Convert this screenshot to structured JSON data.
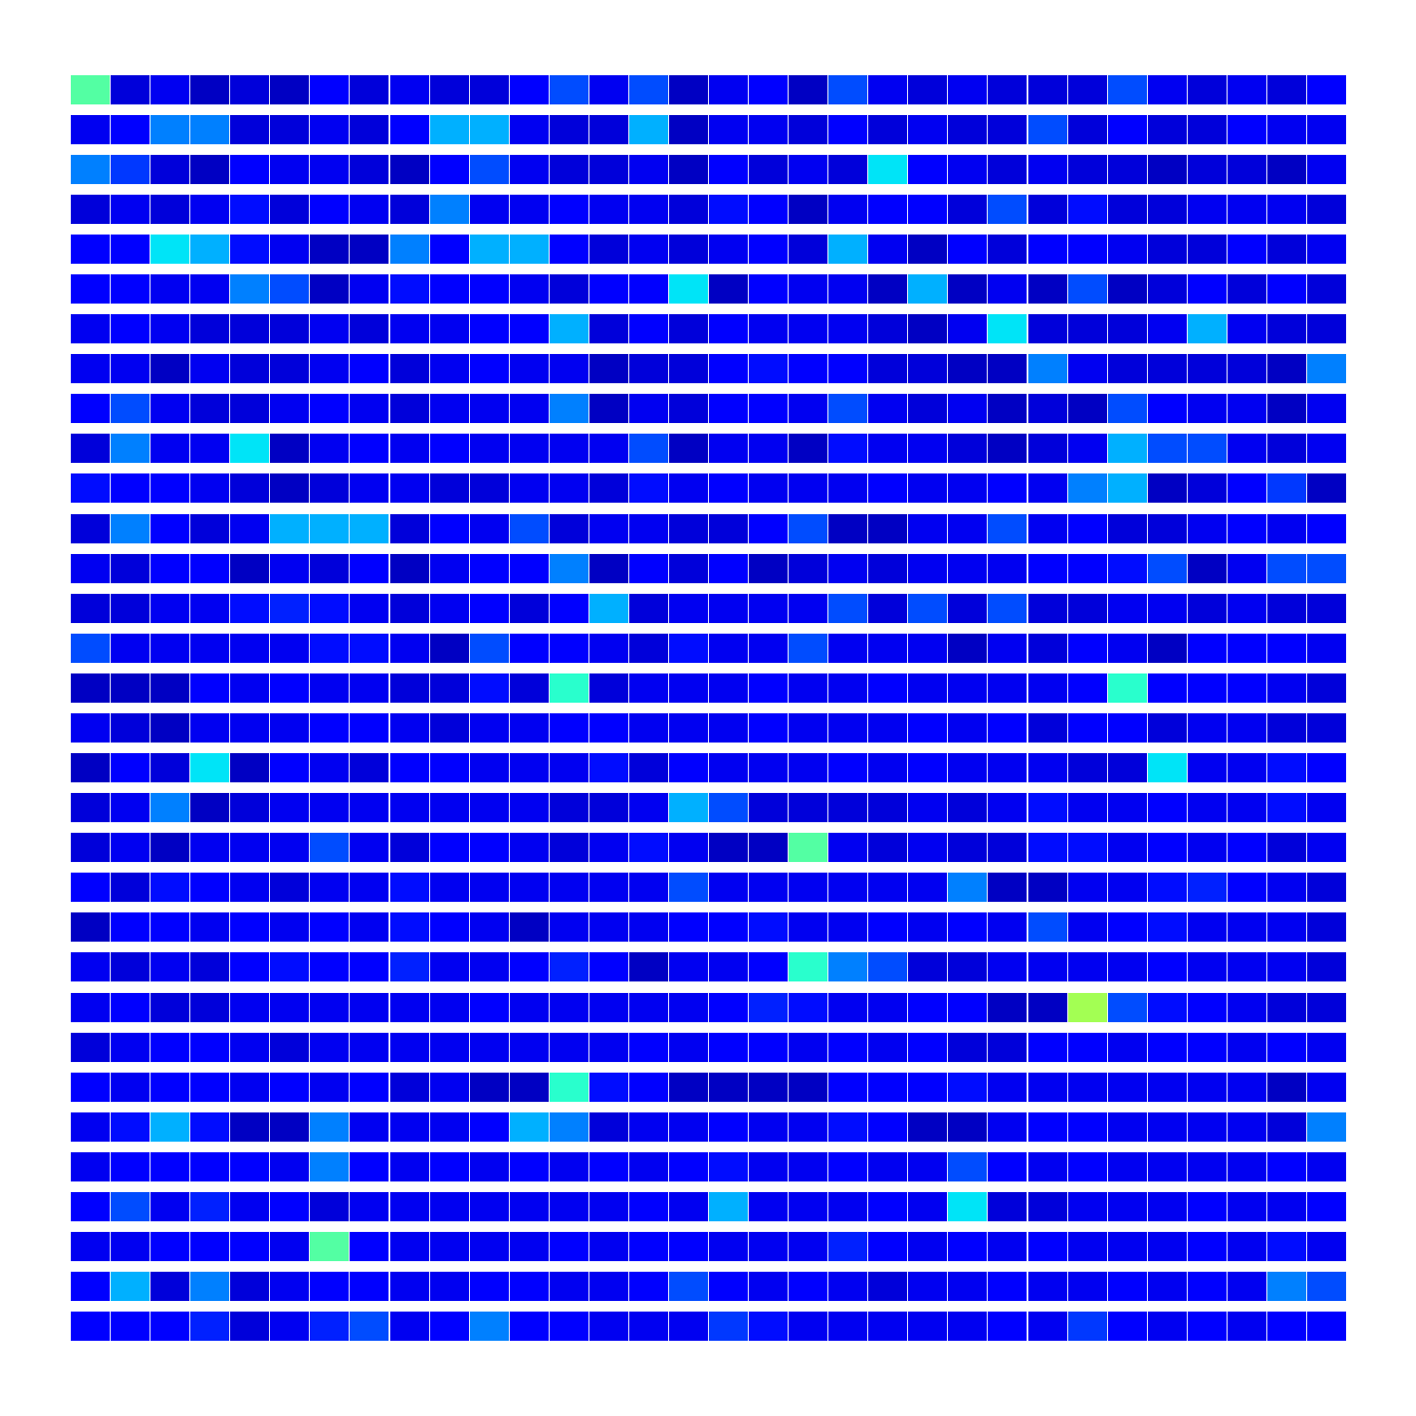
{
  "chart_data": {
    "type": "heatmap_grid",
    "color": "jet",
    "color_range": [
      0,
      1
    ],
    "tick_labels": false,
    "cells": [
      [
        0.45,
        0.08,
        0.1,
        0.06,
        0.08,
        0.06,
        0.12,
        0.08,
        0.1,
        0.08,
        0.08,
        0.12,
        0.2,
        0.1,
        0.2,
        0.06,
        0.1,
        0.12,
        0.06,
        0.2,
        0.1,
        0.08,
        0.1,
        0.08,
        0.08,
        0.08,
        0.2,
        0.1,
        0.08,
        0.1,
        0.08,
        0.12
      ],
      [
        0.1,
        0.12,
        0.25,
        0.25,
        0.08,
        0.08,
        0.1,
        0.08,
        0.12,
        0.3,
        0.3,
        0.1,
        0.08,
        0.08,
        0.3,
        0.06,
        0.1,
        0.1,
        0.08,
        0.12,
        0.08,
        0.1,
        0.08,
        0.08,
        0.2,
        0.08,
        0.12,
        0.08,
        0.08,
        0.12,
        0.1,
        0.1
      ],
      [
        0.25,
        0.18,
        0.08,
        0.06,
        0.12,
        0.1,
        0.1,
        0.08,
        0.06,
        0.12,
        0.2,
        0.1,
        0.08,
        0.08,
        0.1,
        0.06,
        0.12,
        0.08,
        0.1,
        0.08,
        0.35,
        0.12,
        0.1,
        0.08,
        0.1,
        0.08,
        0.08,
        0.06,
        0.08,
        0.08,
        0.06,
        0.1
      ],
      [
        0.08,
        0.1,
        0.08,
        0.1,
        0.14,
        0.08,
        0.12,
        0.1,
        0.08,
        0.25,
        0.1,
        0.1,
        0.12,
        0.1,
        0.1,
        0.08,
        0.14,
        0.12,
        0.06,
        0.1,
        0.12,
        0.12,
        0.08,
        0.2,
        0.08,
        0.14,
        0.08,
        0.08,
        0.1,
        0.1,
        0.1,
        0.08
      ],
      [
        0.12,
        0.12,
        0.35,
        0.3,
        0.14,
        0.1,
        0.06,
        0.06,
        0.25,
        0.12,
        0.3,
        0.3,
        0.12,
        0.08,
        0.1,
        0.08,
        0.1,
        0.12,
        0.08,
        0.3,
        0.1,
        0.06,
        0.12,
        0.08,
        0.12,
        0.12,
        0.1,
        0.08,
        0.08,
        0.12,
        0.08,
        0.1
      ],
      [
        0.12,
        0.12,
        0.1,
        0.1,
        0.25,
        0.2,
        0.06,
        0.1,
        0.14,
        0.12,
        0.12,
        0.1,
        0.08,
        0.12,
        0.12,
        0.35,
        0.06,
        0.12,
        0.1,
        0.1,
        0.06,
        0.3,
        0.06,
        0.1,
        0.06,
        0.2,
        0.06,
        0.08,
        0.12,
        0.08,
        0.12,
        0.08
      ],
      [
        0.1,
        0.12,
        0.1,
        0.08,
        0.08,
        0.08,
        0.1,
        0.08,
        0.1,
        0.1,
        0.12,
        0.12,
        0.3,
        0.08,
        0.12,
        0.08,
        0.12,
        0.1,
        0.1,
        0.1,
        0.08,
        0.06,
        0.1,
        0.35,
        0.08,
        0.08,
        0.08,
        0.1,
        0.3,
        0.1,
        0.08,
        0.08
      ],
      [
        0.1,
        0.1,
        0.06,
        0.1,
        0.08,
        0.08,
        0.1,
        0.12,
        0.08,
        0.1,
        0.12,
        0.1,
        0.1,
        0.06,
        0.08,
        0.08,
        0.12,
        0.14,
        0.12,
        0.12,
        0.08,
        0.08,
        0.06,
        0.06,
        0.25,
        0.1,
        0.08,
        0.08,
        0.08,
        0.08,
        0.06,
        0.25
      ],
      [
        0.12,
        0.2,
        0.1,
        0.08,
        0.08,
        0.1,
        0.12,
        0.1,
        0.08,
        0.1,
        0.1,
        0.1,
        0.25,
        0.06,
        0.1,
        0.08,
        0.12,
        0.12,
        0.1,
        0.2,
        0.1,
        0.08,
        0.1,
        0.06,
        0.08,
        0.06,
        0.2,
        0.12,
        0.1,
        0.1,
        0.06,
        0.1
      ],
      [
        0.08,
        0.25,
        0.1,
        0.1,
        0.35,
        0.06,
        0.1,
        0.12,
        0.1,
        0.12,
        0.1,
        0.1,
        0.1,
        0.1,
        0.2,
        0.06,
        0.1,
        0.1,
        0.06,
        0.14,
        0.1,
        0.1,
        0.08,
        0.06,
        0.08,
        0.1,
        0.3,
        0.2,
        0.2,
        0.1,
        0.08,
        0.1
      ],
      [
        0.14,
        0.12,
        0.12,
        0.1,
        0.08,
        0.06,
        0.08,
        0.1,
        0.1,
        0.08,
        0.08,
        0.1,
        0.1,
        0.08,
        0.14,
        0.1,
        0.12,
        0.1,
        0.1,
        0.1,
        0.12,
        0.1,
        0.1,
        0.12,
        0.1,
        0.25,
        0.3,
        0.06,
        0.08,
        0.12,
        0.18,
        0.06
      ],
      [
        0.08,
        0.25,
        0.12,
        0.08,
        0.1,
        0.3,
        0.3,
        0.3,
        0.08,
        0.12,
        0.1,
        0.2,
        0.08,
        0.1,
        0.1,
        0.08,
        0.08,
        0.12,
        0.2,
        0.06,
        0.06,
        0.1,
        0.1,
        0.2,
        0.1,
        0.12,
        0.08,
        0.08,
        0.1,
        0.12,
        0.1,
        0.12
      ],
      [
        0.1,
        0.08,
        0.12,
        0.12,
        0.06,
        0.1,
        0.08,
        0.12,
        0.06,
        0.1,
        0.12,
        0.12,
        0.25,
        0.06,
        0.12,
        0.08,
        0.12,
        0.06,
        0.08,
        0.1,
        0.08,
        0.1,
        0.1,
        0.1,
        0.12,
        0.12,
        0.14,
        0.2,
        0.06,
        0.1,
        0.2,
        0.2
      ],
      [
        0.08,
        0.08,
        0.1,
        0.1,
        0.14,
        0.16,
        0.14,
        0.1,
        0.08,
        0.1,
        0.12,
        0.08,
        0.12,
        0.3,
        0.08,
        0.1,
        0.1,
        0.1,
        0.1,
        0.2,
        0.08,
        0.2,
        0.08,
        0.2,
        0.08,
        0.08,
        0.1,
        0.1,
        0.08,
        0.1,
        0.08,
        0.08
      ],
      [
        0.2,
        0.1,
        0.1,
        0.1,
        0.1,
        0.1,
        0.14,
        0.14,
        0.1,
        0.06,
        0.2,
        0.12,
        0.12,
        0.1,
        0.08,
        0.14,
        0.1,
        0.1,
        0.2,
        0.1,
        0.1,
        0.1,
        0.06,
        0.1,
        0.08,
        0.12,
        0.1,
        0.06,
        0.12,
        0.12,
        0.12,
        0.1
      ],
      [
        0.06,
        0.06,
        0.06,
        0.12,
        0.1,
        0.12,
        0.1,
        0.1,
        0.08,
        0.08,
        0.14,
        0.08,
        0.4,
        0.08,
        0.1,
        0.1,
        0.1,
        0.12,
        0.1,
        0.1,
        0.12,
        0.1,
        0.1,
        0.1,
        0.1,
        0.12,
        0.4,
        0.12,
        0.12,
        0.12,
        0.1,
        0.08
      ],
      [
        0.1,
        0.08,
        0.06,
        0.1,
        0.1,
        0.1,
        0.12,
        0.12,
        0.1,
        0.08,
        0.1,
        0.1,
        0.12,
        0.12,
        0.1,
        0.1,
        0.1,
        0.12,
        0.1,
        0.1,
        0.1,
        0.12,
        0.1,
        0.12,
        0.08,
        0.12,
        0.12,
        0.08,
        0.1,
        0.1,
        0.08,
        0.08
      ],
      [
        0.06,
        0.12,
        0.08,
        0.35,
        0.06,
        0.12,
        0.1,
        0.08,
        0.12,
        0.12,
        0.1,
        0.1,
        0.1,
        0.14,
        0.08,
        0.12,
        0.1,
        0.1,
        0.1,
        0.12,
        0.1,
        0.12,
        0.1,
        0.1,
        0.1,
        0.08,
        0.08,
        0.35,
        0.1,
        0.1,
        0.14,
        0.12
      ],
      [
        0.08,
        0.1,
        0.25,
        0.06,
        0.08,
        0.1,
        0.1,
        0.1,
        0.1,
        0.1,
        0.1,
        0.1,
        0.08,
        0.08,
        0.1,
        0.3,
        0.2,
        0.08,
        0.08,
        0.08,
        0.08,
        0.1,
        0.08,
        0.1,
        0.14,
        0.1,
        0.1,
        0.12,
        0.1,
        0.1,
        0.14,
        0.1
      ],
      [
        0.08,
        0.1,
        0.06,
        0.1,
        0.1,
        0.1,
        0.2,
        0.1,
        0.08,
        0.12,
        0.12,
        0.1,
        0.08,
        0.1,
        0.14,
        0.1,
        0.06,
        0.06,
        0.45,
        0.1,
        0.08,
        0.1,
        0.08,
        0.08,
        0.14,
        0.14,
        0.1,
        0.12,
        0.1,
        0.12,
        0.08,
        0.1
      ],
      [
        0.12,
        0.08,
        0.14,
        0.12,
        0.1,
        0.08,
        0.1,
        0.1,
        0.14,
        0.1,
        0.1,
        0.1,
        0.1,
        0.1,
        0.1,
        0.2,
        0.1,
        0.1,
        0.1,
        0.1,
        0.1,
        0.1,
        0.25,
        0.06,
        0.06,
        0.1,
        0.1,
        0.14,
        0.16,
        0.12,
        0.1,
        0.08
      ],
      [
        0.06,
        0.12,
        0.12,
        0.1,
        0.12,
        0.1,
        0.12,
        0.1,
        0.14,
        0.12,
        0.1,
        0.06,
        0.1,
        0.1,
        0.1,
        0.12,
        0.12,
        0.14,
        0.1,
        0.1,
        0.12,
        0.1,
        0.12,
        0.1,
        0.2,
        0.1,
        0.12,
        0.14,
        0.1,
        0.1,
        0.1,
        0.08
      ],
      [
        0.1,
        0.08,
        0.1,
        0.08,
        0.12,
        0.14,
        0.12,
        0.12,
        0.16,
        0.1,
        0.1,
        0.12,
        0.16,
        0.12,
        0.06,
        0.1,
        0.1,
        0.12,
        0.4,
        0.25,
        0.2,
        0.08,
        0.08,
        0.1,
        0.1,
        0.1,
        0.1,
        0.12,
        0.1,
        0.1,
        0.1,
        0.08
      ],
      [
        0.1,
        0.12,
        0.08,
        0.08,
        0.1,
        0.1,
        0.1,
        0.1,
        0.1,
        0.1,
        0.12,
        0.1,
        0.1,
        0.1,
        0.1,
        0.1,
        0.12,
        0.16,
        0.14,
        0.1,
        0.1,
        0.12,
        0.12,
        0.06,
        0.06,
        0.55,
        0.2,
        0.14,
        0.12,
        0.1,
        0.08,
        0.08
      ],
      [
        0.08,
        0.1,
        0.12,
        0.12,
        0.1,
        0.08,
        0.1,
        0.1,
        0.1,
        0.1,
        0.1,
        0.1,
        0.1,
        0.1,
        0.12,
        0.1,
        0.12,
        0.12,
        0.1,
        0.12,
        0.1,
        0.12,
        0.08,
        0.08,
        0.12,
        0.12,
        0.1,
        0.12,
        0.12,
        0.1,
        0.12,
        0.1
      ],
      [
        0.12,
        0.1,
        0.12,
        0.12,
        0.1,
        0.12,
        0.1,
        0.12,
        0.08,
        0.1,
        0.06,
        0.06,
        0.4,
        0.14,
        0.12,
        0.06,
        0.06,
        0.06,
        0.06,
        0.12,
        0.12,
        0.12,
        0.14,
        0.1,
        0.1,
        0.1,
        0.1,
        0.1,
        0.1,
        0.1,
        0.06,
        0.1
      ],
      [
        0.1,
        0.14,
        0.3,
        0.14,
        0.06,
        0.06,
        0.25,
        0.1,
        0.1,
        0.1,
        0.12,
        0.3,
        0.25,
        0.08,
        0.1,
        0.1,
        0.12,
        0.1,
        0.1,
        0.14,
        0.12,
        0.06,
        0.06,
        0.1,
        0.12,
        0.12,
        0.1,
        0.1,
        0.1,
        0.1,
        0.08,
        0.25
      ],
      [
        0.1,
        0.12,
        0.12,
        0.12,
        0.12,
        0.1,
        0.25,
        0.12,
        0.1,
        0.12,
        0.1,
        0.12,
        0.1,
        0.12,
        0.1,
        0.12,
        0.14,
        0.1,
        0.1,
        0.12,
        0.1,
        0.1,
        0.2,
        0.12,
        0.1,
        0.12,
        0.1,
        0.1,
        0.1,
        0.1,
        0.12,
        0.1
      ],
      [
        0.12,
        0.2,
        0.1,
        0.16,
        0.1,
        0.12,
        0.08,
        0.1,
        0.1,
        0.1,
        0.1,
        0.1,
        0.1,
        0.1,
        0.12,
        0.1,
        0.3,
        0.1,
        0.1,
        0.1,
        0.12,
        0.1,
        0.35,
        0.08,
        0.08,
        0.1,
        0.1,
        0.1,
        0.12,
        0.1,
        0.1,
        0.12
      ],
      [
        0.1,
        0.1,
        0.12,
        0.12,
        0.12,
        0.1,
        0.45,
        0.12,
        0.1,
        0.1,
        0.1,
        0.1,
        0.12,
        0.1,
        0.12,
        0.12,
        0.1,
        0.1,
        0.1,
        0.16,
        0.12,
        0.1,
        0.12,
        0.1,
        0.12,
        0.1,
        0.1,
        0.1,
        0.12,
        0.1,
        0.14,
        0.1
      ],
      [
        0.12,
        0.3,
        0.08,
        0.25,
        0.08,
        0.1,
        0.12,
        0.12,
        0.1,
        0.1,
        0.12,
        0.12,
        0.1,
        0.1,
        0.12,
        0.2,
        0.12,
        0.1,
        0.12,
        0.1,
        0.08,
        0.1,
        0.1,
        0.12,
        0.1,
        0.1,
        0.12,
        0.1,
        0.12,
        0.1,
        0.25,
        0.2
      ],
      [
        0.12,
        0.12,
        0.12,
        0.16,
        0.08,
        0.1,
        0.16,
        0.2,
        0.1,
        0.12,
        0.25,
        0.12,
        0.12,
        0.1,
        0.1,
        0.1,
        0.18,
        0.14,
        0.1,
        0.1,
        0.1,
        0.1,
        0.1,
        0.12,
        0.1,
        0.18,
        0.12,
        0.1,
        0.12,
        0.1,
        0.12,
        0.12
      ]
    ]
  }
}
